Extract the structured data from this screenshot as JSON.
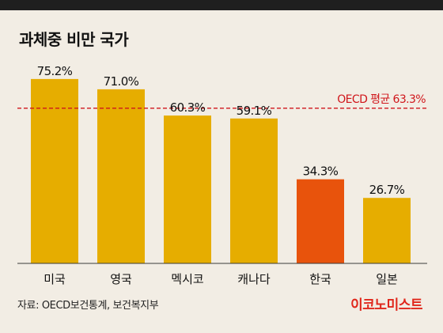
{
  "header": {
    "title": "과체중 비만 국가"
  },
  "chart_data": {
    "type": "bar",
    "title": "과체중 비만 국가",
    "categories": [
      "미국",
      "영국",
      "멕시코",
      "캐나다",
      "한국",
      "일본"
    ],
    "values": [
      75.2,
      71.0,
      60.3,
      59.1,
      34.3,
      26.7
    ],
    "value_labels": [
      "75.2%",
      "71.0%",
      "60.3%",
      "59.1%",
      "34.3%",
      "26.7%"
    ],
    "ylim": [
      0,
      80
    ],
    "grid": false,
    "reference_line": {
      "value": 63.3,
      "label": "OECD 평균 63.3%",
      "color": "#d0161b"
    },
    "colors": {
      "default": "#e6ad00",
      "highlight": "#e8530c",
      "highlight_category": "한국"
    }
  },
  "footer": {
    "source": "자료: OECD보건통계, 보건복지부",
    "logo": "이코노미스트"
  }
}
